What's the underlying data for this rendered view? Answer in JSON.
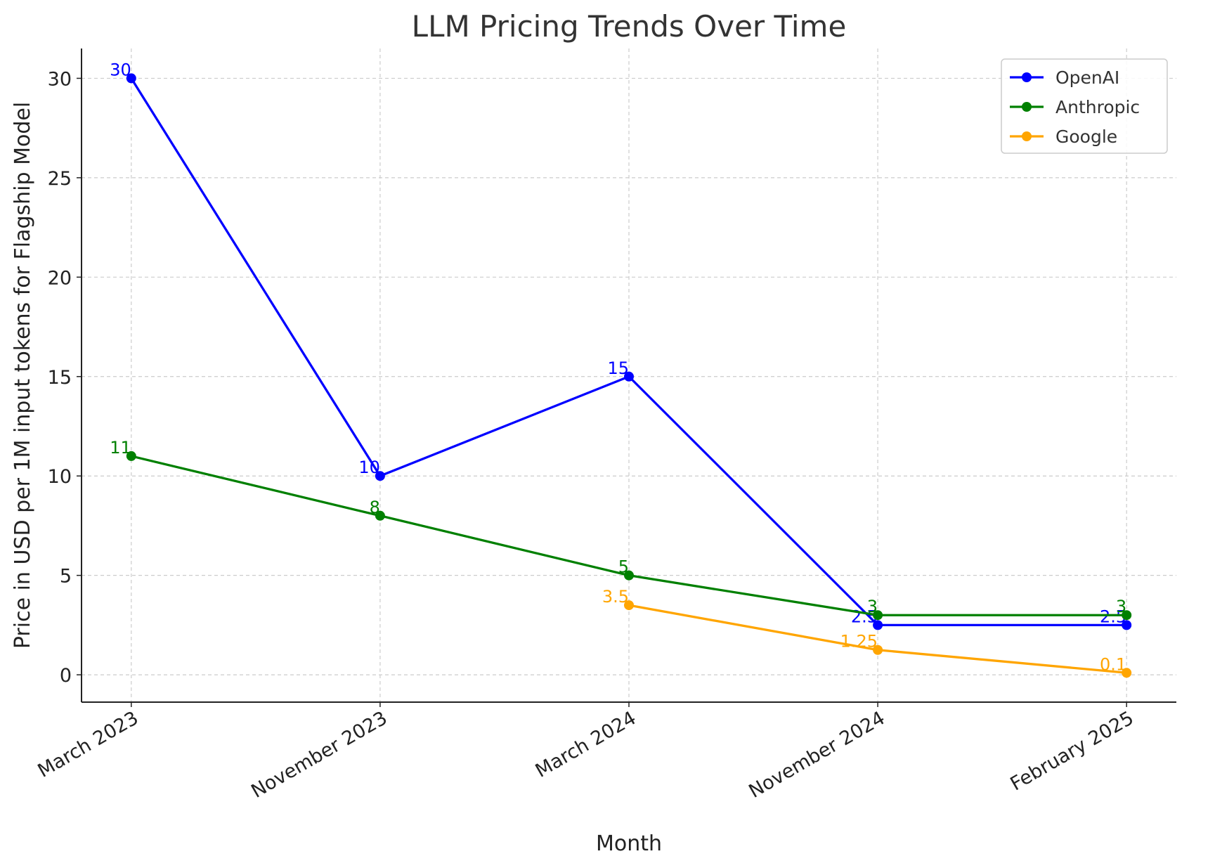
{
  "chart_data": {
    "type": "line",
    "title": "LLM Pricing Trends Over Time",
    "x_label": "Month",
    "y_label": "Price in USD per 1M input tokens for Flagship Model",
    "categories": [
      "March 2023",
      "November 2023",
      "March 2024",
      "November 2024",
      "February 2025"
    ],
    "series": [
      {
        "name": "OpenAI",
        "color": "#0000ff",
        "values": [
          30,
          10,
          15,
          2.5,
          2.5
        ]
      },
      {
        "name": "Anthropic",
        "color": "#008000",
        "values": [
          11,
          8,
          5,
          3,
          3
        ]
      },
      {
        "name": "Google",
        "color": "#ffa500",
        "values": [
          null,
          null,
          3.5,
          1.25,
          0.1
        ]
      }
    ],
    "ylim": [
      -1.375,
      31.5
    ],
    "yticks": [
      0,
      5,
      10,
      15,
      20,
      25,
      30
    ],
    "grid": true,
    "legend": "upper right"
  }
}
